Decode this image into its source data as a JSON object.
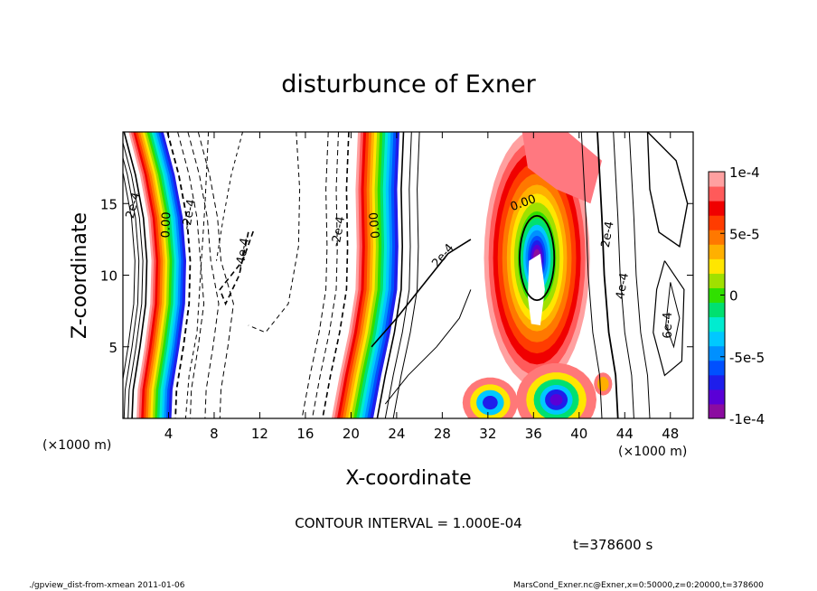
{
  "chart_data": {
    "type": "contour",
    "title": "disturbunce of Exner",
    "xlabel": "X-coordinate",
    "ylabel": "Z-coordinate",
    "x_unit": "(×1000 m)",
    "y_unit": "(×1000 m)",
    "xlim": [
      0,
      50
    ],
    "ylim": [
      0,
      20
    ],
    "x_ticks": [
      4,
      8,
      12,
      16,
      20,
      24,
      28,
      32,
      36,
      40,
      44,
      48
    ],
    "y_ticks": [
      5,
      10,
      15
    ],
    "colorbar": {
      "min": -0.0001,
      "max": 0.0001,
      "tick_labels": [
        "1e-4",
        "5e-5",
        "0",
        "-5e-5",
        "-1e-4"
      ],
      "tick_values": [
        0.0001,
        5e-05,
        0,
        -5e-05,
        -0.0001
      ],
      "colors": [
        "#8b0ca0",
        "#5a00d6",
        "#1e1eeb",
        "#0050ff",
        "#0090ff",
        "#00c8ff",
        "#00ecd0",
        "#00e070",
        "#30e000",
        "#a0e000",
        "#ffe600",
        "#ffb000",
        "#ff7800",
        "#ff3c00",
        "#f00000",
        "#ff5a5a",
        "#ffa0a0"
      ]
    },
    "contour_labels": [
      "2e-4",
      "0.00",
      "-2e-4",
      "-4e-4",
      "-2e-4",
      "0.00",
      "2e-4",
      "0.00",
      "2e-4",
      "4e-4",
      "6e-4"
    ],
    "contour_interval": "CONTOUR INTERVAL = 1.000E-04",
    "time": "t=378600 s",
    "grid": false
  },
  "footer": {
    "left": "./gpview_dist-from-xmean  2011-01-06",
    "right": "MarsCond_Exner.nc@Exner,x=0:50000,z=0:20000,t=378600"
  }
}
